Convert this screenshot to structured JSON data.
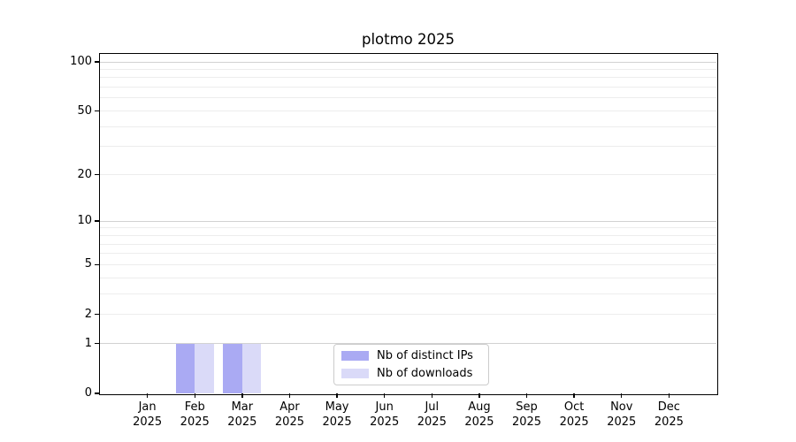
{
  "chart_data": {
    "type": "bar",
    "title": "plotmo 2025",
    "xlabel": "",
    "ylabel": "",
    "scale": "log1p",
    "ylim": [
      0,
      112
    ],
    "grid": "horizontal",
    "categories": [
      "Jan 2025",
      "Feb 2025",
      "Mar 2025",
      "Apr 2025",
      "May 2025",
      "Jun 2025",
      "Jul 2025",
      "Aug 2025",
      "Sep 2025",
      "Oct 2025",
      "Nov 2025",
      "Dec 2025"
    ],
    "y_ticks": [
      0,
      1,
      2,
      5,
      10,
      20,
      50,
      100
    ],
    "major_gridlines": [
      1,
      10,
      100
    ],
    "minor_gridlines": [
      2,
      3,
      4,
      5,
      6,
      7,
      8,
      9,
      20,
      30,
      40,
      50,
      60,
      70,
      80,
      90
    ],
    "series": [
      {
        "name": "Nb of distinct IPs",
        "color": "#aaaaf3",
        "values": [
          0,
          1,
          1,
          0,
          0,
          0,
          0,
          0,
          0,
          0,
          0,
          0
        ]
      },
      {
        "name": "Nb of downloads",
        "color": "#dadaf8",
        "values": [
          0,
          1,
          1,
          0,
          0,
          0,
          0,
          0,
          0,
          0,
          0,
          0
        ]
      }
    ],
    "legend": {
      "position": "lower center",
      "border_color": "#cccccc"
    },
    "colors": {
      "major_grid": "#d2d2d2",
      "minor_grid": "#ededed",
      "axis": "#000000",
      "background": "#ffffff"
    }
  }
}
